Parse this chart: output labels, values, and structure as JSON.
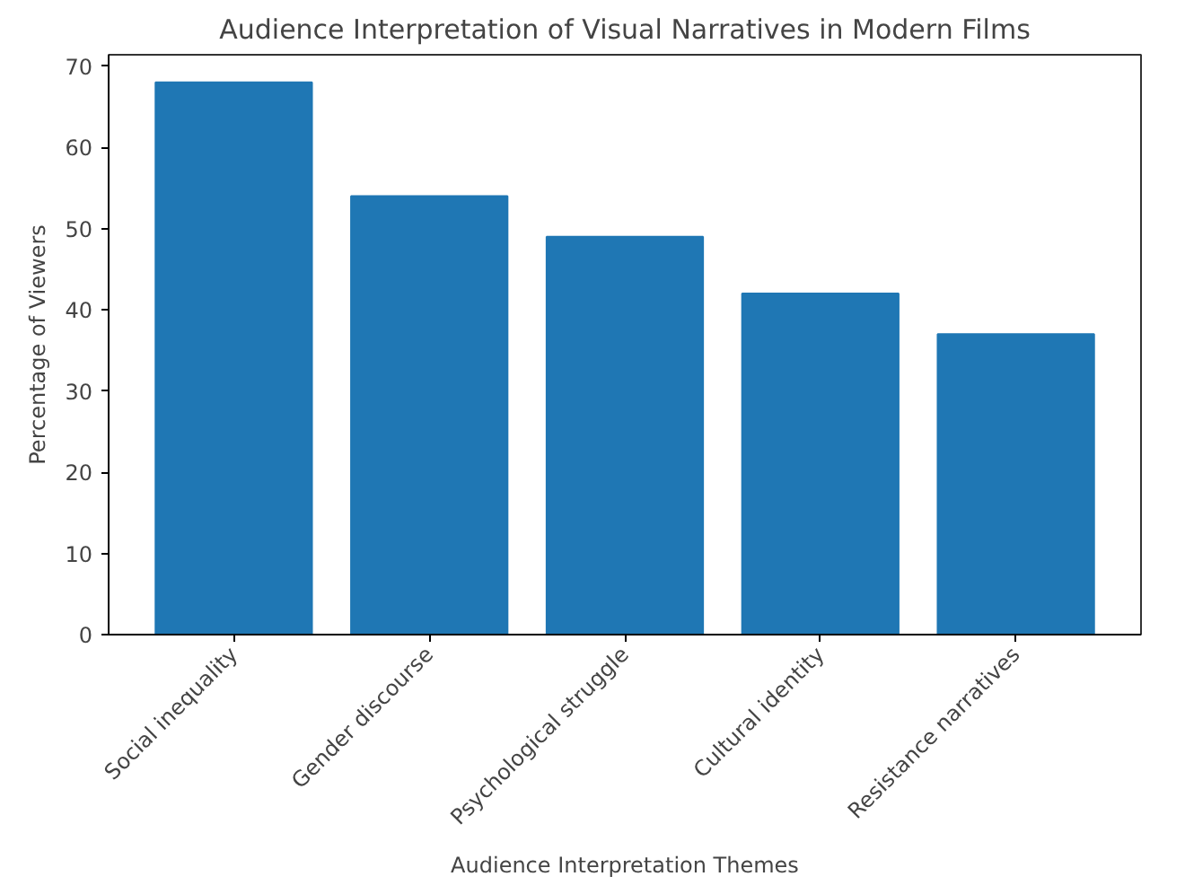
{
  "chart_data": {
    "type": "bar",
    "title": "Audience Interpretation of Visual Narratives in Modern Films",
    "xlabel": "Audience Interpretation Themes",
    "ylabel": "Percentage of Viewers",
    "categories": [
      "Social inequality",
      "Gender discourse",
      "Psychological struggle",
      "Cultural identity",
      "Resistance narratives"
    ],
    "values": [
      68,
      54,
      49,
      42,
      37
    ],
    "color": "#1f77b4",
    "ylim": [
      0,
      71.4
    ],
    "yticks": [
      0,
      10,
      20,
      30,
      40,
      50,
      60,
      70
    ],
    "grid": false
  }
}
